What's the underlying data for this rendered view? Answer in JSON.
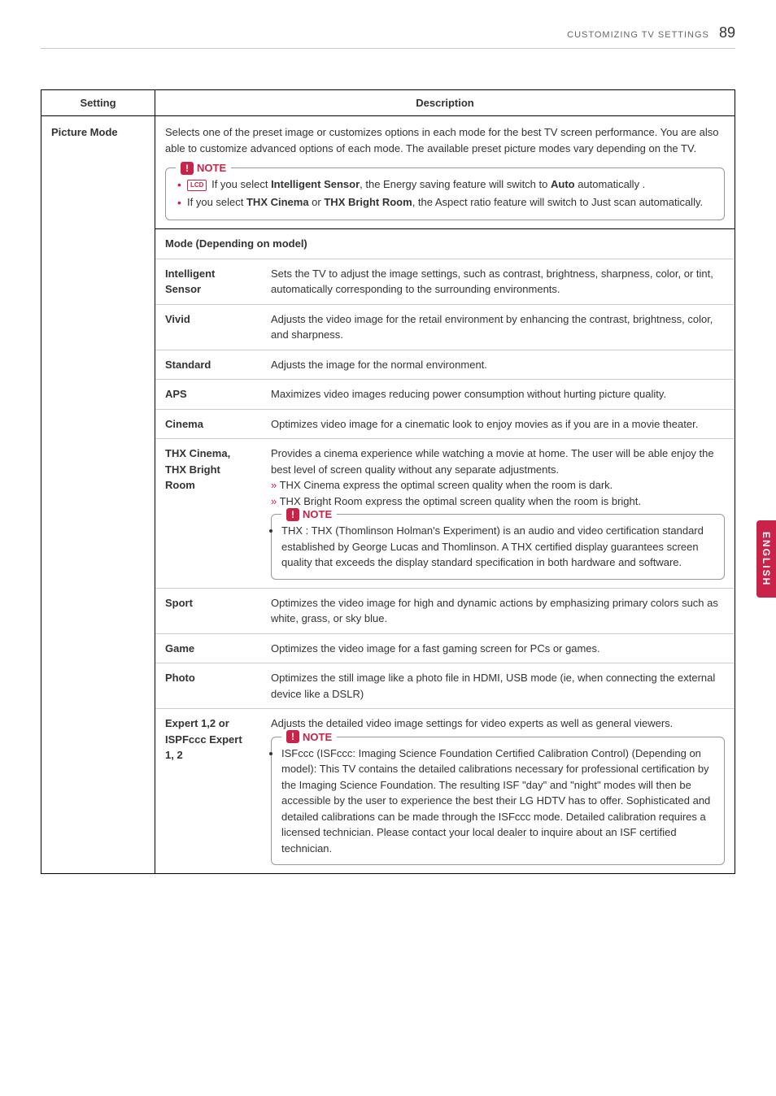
{
  "header": {
    "section_title": "CUSTOMIZING TV SETTINGS",
    "page_number": "89"
  },
  "side_tab": "ENGLISH",
  "table": {
    "col_setting": "Setting",
    "col_description": "Description",
    "setting_name": "Picture Mode",
    "intro_text": "Selects one of the preset image or customizes options in each mode for the best TV screen performance. You are also able to customize advanced options of each mode. The available preset picture modes vary depending on the TV.",
    "note_label": "NOTE",
    "lcd_badge": "LCD",
    "note1_item1_pre": "If you select ",
    "note1_item1_bold1": "Intelligent Sensor",
    "note1_item1_mid": ", the Energy saving feature will switch to ",
    "note1_item1_bold2": "Auto",
    "note1_item1_post": " automatically .",
    "note1_item2_pre": "If you select ",
    "note1_item2_bold1": "THX Cinema",
    "note1_item2_or": " or ",
    "note1_item2_bold2": "THX Bright Room",
    "note1_item2_post": ", the Aspect ratio feature will switch to Just scan automatically.",
    "mode_header": "Mode (Depending on model)",
    "modes": {
      "intelligent_sensor": {
        "label": "Intelligent Sensor",
        "desc": "Sets the TV to adjust the image settings, such as contrast, brightness, sharpness, color, or tint, automatically corresponding to the surrounding environments."
      },
      "vivid": {
        "label": "Vivid",
        "desc": "Adjusts the video image for the retail environment by enhancing the contrast, brightness, color, and sharpness."
      },
      "standard": {
        "label": "Standard",
        "desc": "Adjusts the image for the normal environment."
      },
      "aps": {
        "label": "APS",
        "desc": "Maximizes video images reducing power consumption without hurting picture quality."
      },
      "cinema": {
        "label": "Cinema",
        "desc": "Optimizes video image for a cinematic look to enjoy movies as if you are in a movie theater."
      },
      "thx": {
        "label1": "THX Cinema",
        "label2": "THX Bright Room",
        "desc": "Provides a cinema experience while watching a movie at home. The user will be able enjoy the best level of screen quality without any separate adjustments.",
        "sub1": "THX Cinema express the optimal screen quality when the room is dark.",
        "sub2": "THX Bright Room express the optimal screen quality when the room is bright.",
        "note": "THX : THX (Thomlinson Holman's Experiment) is an audio and video certification standard established by George Lucas and Thomlinson. A THX certified display guarantees screen quality that exceeds the display standard specification in both hardware and software."
      },
      "sport": {
        "label": "Sport",
        "desc": "Optimizes the video image for high and dynamic actions by emphasizing primary colors such as white, grass, or sky blue."
      },
      "game": {
        "label": "Game",
        "desc": "Optimizes the video image for a fast gaming screen for PCs or games."
      },
      "photo": {
        "label": "Photo",
        "desc": "Optimizes the still image like a photo file in HDMI, USB mode (ie, when connecting the external device like a DSLR)"
      },
      "expert": {
        "label": "Expert 1,2 or ISPFccc Expert 1, 2",
        "desc": "Adjusts the detailed video image settings for video experts as well as general viewers.",
        "note": "ISFccc (ISFccc: Imaging Science Foundation Certified Calibration Control) (Depending on model): This TV contains the detailed calibrations necessary for professional certification by the Imaging Science Foundation. The resulting ISF \"day\" and \"night\" modes will then be accessible by the user to experience the best their LG HDTV has to offer. Sophisticated and detailed calibrations can be made through the ISFccc mode. Detailed calibration requires a licensed technician. Please contact your local dealer to inquire about an ISF certified technician."
      }
    }
  }
}
